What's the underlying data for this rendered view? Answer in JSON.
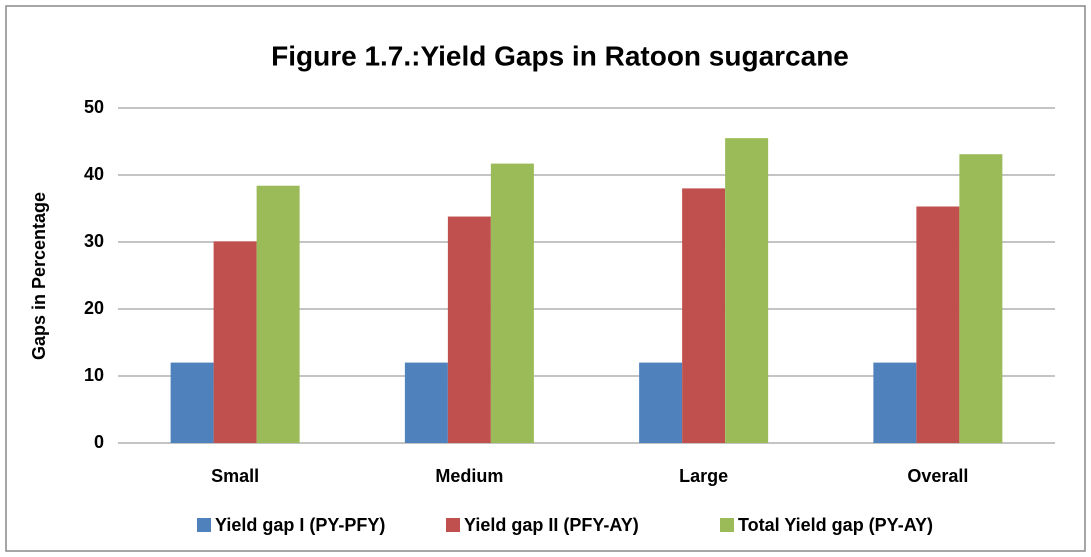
{
  "chart_data": {
    "type": "bar",
    "title": "Figure 1.7.:Yield Gaps in Ratoon sugarcane",
    "y_label": "Gaps in Percentage",
    "categories": [
      "Small",
      "Medium",
      "Large",
      "Overall"
    ],
    "series": [
      {
        "name": "Yield gap I (PY-PFY)",
        "color": "#4f81bd",
        "values": [
          12,
          12,
          12,
          12
        ]
      },
      {
        "name": "Yield gap II (PFY-AY)",
        "color": "#c0504d",
        "values": [
          30.1,
          33.8,
          38.0,
          35.3
        ]
      },
      {
        "name": "Total Yield gap (PY-AY)",
        "color": "#9bbb59",
        "values": [
          38.4,
          41.7,
          45.5,
          43.1
        ]
      }
    ],
    "ylim": [
      0,
      50
    ],
    "yticks": [
      0,
      10,
      20,
      30,
      40,
      50
    ],
    "grid": true,
    "legend": "bottom"
  }
}
